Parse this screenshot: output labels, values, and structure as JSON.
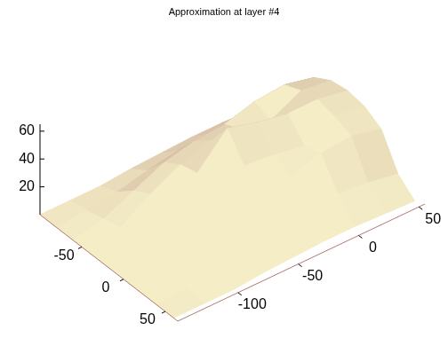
{
  "chart_data": {
    "type": "surface",
    "title": "Approximation at layer #4",
    "x": [
      -100,
      -80,
      -60,
      -40,
      -20,
      0,
      20,
      40,
      60
    ],
    "y": [
      -150,
      -125,
      -100,
      -75,
      -50,
      -25,
      0,
      25,
      50
    ],
    "z": [
      [
        0,
        0,
        0,
        0,
        0,
        0,
        0,
        0,
        0
      ],
      [
        0,
        2,
        5,
        8,
        9,
        8,
        5,
        2,
        0
      ],
      [
        0,
        5,
        15,
        22,
        25,
        22,
        15,
        5,
        0
      ],
      [
        2,
        10,
        25,
        33,
        36,
        33,
        25,
        10,
        2
      ],
      [
        3,
        14,
        30,
        40,
        58,
        40,
        30,
        14,
        3
      ],
      [
        4,
        16,
        32,
        38,
        52,
        38,
        32,
        16,
        4
      ],
      [
        4,
        18,
        38,
        34,
        48,
        34,
        38,
        18,
        4
      ],
      [
        3,
        16,
        40,
        45,
        48,
        45,
        40,
        16,
        3
      ],
      [
        2,
        12,
        35,
        42,
        44,
        42,
        35,
        12,
        2
      ]
    ],
    "xlim": [
      -100,
      65
    ],
    "ylim": [
      -150,
      55
    ],
    "zlim": [
      0,
      65
    ],
    "xticks": [
      -50,
      0,
      50
    ],
    "yticks": [
      -100,
      -50,
      0,
      50
    ],
    "zticks": [
      20,
      40,
      60
    ],
    "color": "#f4edc6"
  }
}
